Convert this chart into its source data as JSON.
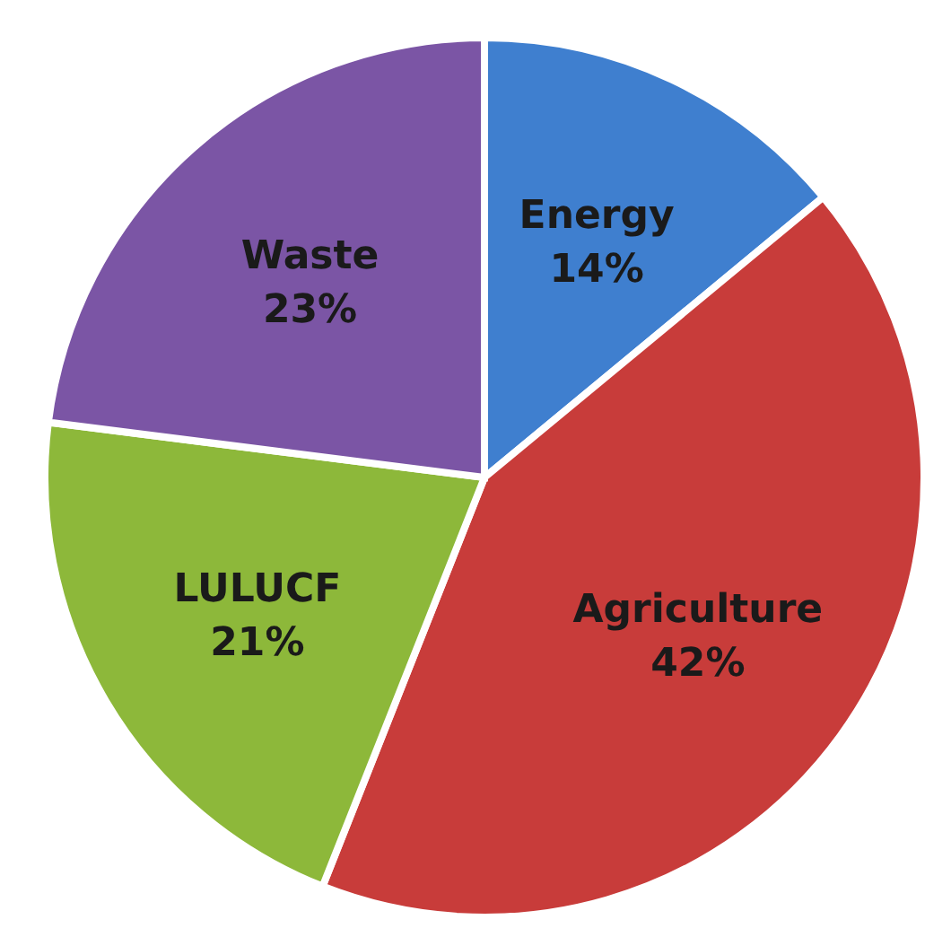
{
  "chart_data": {
    "type": "pie",
    "categories": [
      "Energy",
      "Agriculture",
      "LULUCF",
      "Waste"
    ],
    "values": [
      14,
      42,
      21,
      23
    ],
    "value_labels": [
      "14%",
      "42%",
      "21%",
      "23%"
    ],
    "colors": [
      "#3f7fcf",
      "#c83c3a",
      "#8db83a",
      "#7b55a5"
    ]
  }
}
